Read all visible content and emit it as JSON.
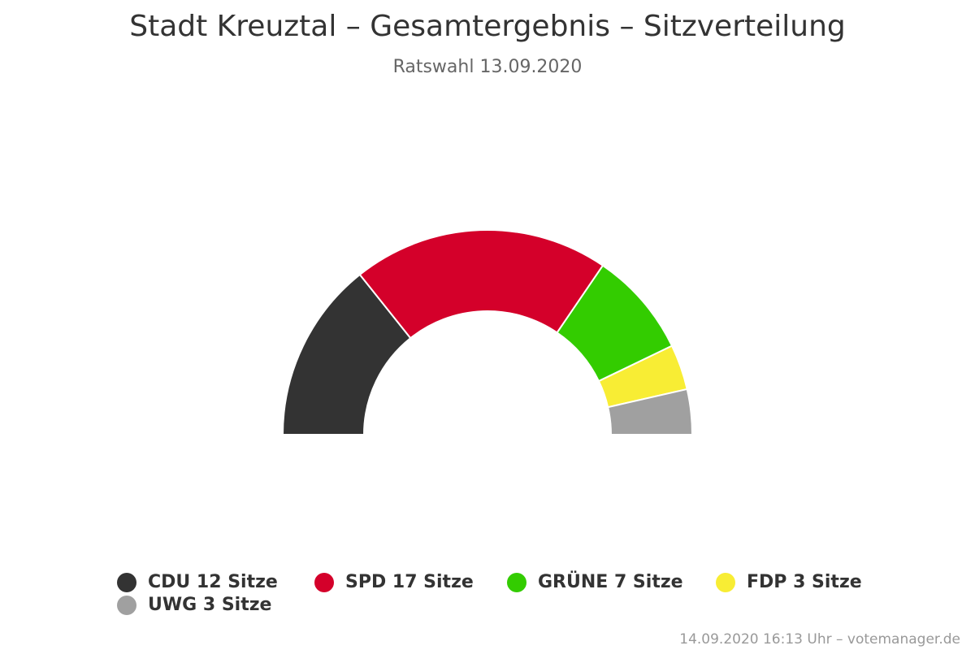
{
  "chart_data": {
    "type": "pie",
    "variant": "semicircle",
    "title": "Stadt Kreuztal – Gesamtergebnis – Sitzverteilung",
    "subtitle": "Ratswahl 13.09.2020",
    "series": [
      {
        "name": "CDU",
        "value": 12,
        "label": "CDU 12 Sitze",
        "color": "#333333"
      },
      {
        "name": "SPD",
        "value": 17,
        "label": "SPD 17 Sitze",
        "color": "#d4002a"
      },
      {
        "name": "GRÜNE",
        "value": 7,
        "label": "GRÜNE 7 Sitze",
        "color": "#33cc00"
      },
      {
        "name": "FDP",
        "value": 3,
        "label": "FDP 3 Sitze",
        "color": "#f8ed34"
      },
      {
        "name": "UWG",
        "value": 3,
        "label": "UWG 3 Sitze",
        "color": "#a0a0a0"
      }
    ],
    "legend_position": "bottom"
  },
  "credits": "14.09.2020 16:13 Uhr – votemanager.de"
}
